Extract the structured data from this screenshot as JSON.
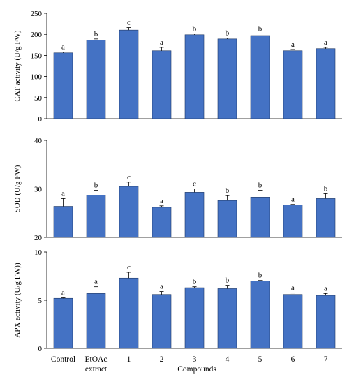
{
  "chart_data": [
    {
      "type": "bar",
      "title": "",
      "ylabel": "CAT activity  (U/g FW)",
      "ylim": [
        0,
        250
      ],
      "yticks": [
        0,
        50,
        100,
        150,
        200,
        250
      ],
      "categories": [
        "Control",
        "EtOAc extract",
        "1",
        "2",
        "3",
        "4",
        "5",
        "6",
        "7"
      ],
      "values": [
        156,
        186,
        210,
        161,
        199,
        189,
        197,
        161,
        166
      ],
      "errors": [
        2,
        3,
        6,
        8,
        2,
        2,
        4,
        3,
        3
      ],
      "significance": [
        "a",
        "b",
        "c",
        "a",
        "b",
        "b",
        "b",
        "a",
        "a"
      ]
    },
    {
      "type": "bar",
      "title": "",
      "ylabel": "SOD (U/g FW)",
      "ylim": [
        20,
        40
      ],
      "yticks": [
        20,
        30,
        40
      ],
      "categories": [
        "Control",
        "EtOAc extract",
        "1",
        "2",
        "3",
        "4",
        "5",
        "6",
        "7"
      ],
      "values": [
        26.4,
        28.7,
        30.5,
        26.2,
        29.3,
        27.6,
        28.3,
        26.7,
        28.0
      ],
      "errors": [
        1.6,
        1.0,
        0.9,
        0.3,
        0.7,
        1.0,
        1.4,
        0.1,
        1.0
      ],
      "significance": [
        "a",
        "b",
        "c",
        "a",
        "c",
        "b",
        "b",
        "a",
        "b"
      ]
    },
    {
      "type": "bar",
      "title": "",
      "ylabel": "APX activity  (U/g FW))",
      "xlabel": "Compounds",
      "ylim": [
        0,
        10
      ],
      "yticks": [
        0,
        5,
        10
      ],
      "categories": [
        "Control",
        "EtOAc extract",
        "1",
        "2",
        "3",
        "4",
        "5",
        "6",
        "7"
      ],
      "values": [
        5.2,
        5.7,
        7.3,
        5.6,
        6.3,
        6.2,
        7.0,
        5.6,
        5.5
      ],
      "errors": [
        0.05,
        0.7,
        0.6,
        0.3,
        0.1,
        0.35,
        0.05,
        0.15,
        0.2
      ],
      "significance": [
        "a",
        "a",
        "c",
        "a",
        "b",
        "b",
        "b",
        "a",
        "a"
      ]
    }
  ]
}
